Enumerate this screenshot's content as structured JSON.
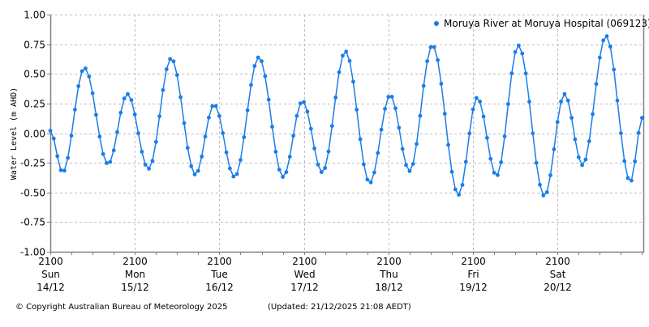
{
  "footer": {
    "copyright": "© Copyright Australian Bureau of Meteorology 2025",
    "updated": "(Updated: 21/12/2025 21:08 AEDT)"
  },
  "colors": {
    "series": "#1a7de8",
    "grid": "#bdbdbd",
    "axis": "#808080"
  },
  "chart_data": {
    "type": "line",
    "title": "",
    "xlabel": "",
    "ylabel": "Water Level (m AHD)",
    "ylim": [
      -1.0,
      1.0
    ],
    "yticks": [
      "1.00",
      "0.75",
      "0.50",
      "0.25",
      "0.00",
      "-0.25",
      "-0.50",
      "-0.75",
      "-1.00"
    ],
    "ytick_values": [
      1.0,
      0.75,
      0.5,
      0.25,
      0.0,
      -0.25,
      -0.5,
      -0.75,
      -1.0
    ],
    "xlim_hours": [
      0,
      168.5
    ],
    "x_unit": "hours since 2100 Sun 14/12",
    "xticks": [
      {
        "hour": 0,
        "time": "2100",
        "day": "Sun",
        "date": "14/12"
      },
      {
        "hour": 24,
        "time": "2100",
        "day": "Mon",
        "date": "15/12"
      },
      {
        "hour": 48,
        "time": "2100",
        "day": "Tue",
        "date": "16/12"
      },
      {
        "hour": 72,
        "time": "2100",
        "day": "Wed",
        "date": "17/12"
      },
      {
        "hour": 96,
        "time": "2100",
        "day": "Thu",
        "date": "18/12"
      },
      {
        "hour": 120,
        "time": "2100",
        "day": "Fri",
        "date": "19/12"
      },
      {
        "hour": 144,
        "time": "2100",
        "day": "Sat",
        "date": "20/12"
      }
    ],
    "minor_tick_hours": 6,
    "grid": true,
    "legend_position": "top-right",
    "series": [
      {
        "name": "Moruya River at Moruya Hospital (069123)",
        "marker": "dot",
        "sampling": "hourly",
        "extrema": {
          "x": [
            0.0,
            3.5,
            9.7,
            16.4,
            21.9,
            27.9,
            34.3,
            41.2,
            46.5,
            52.3,
            59.2,
            66.1,
            71.6,
            77.2,
            83.8,
            90.7,
            96.5,
            102.0,
            108.5,
            115.9,
            121.2,
            126.7,
            132.9,
            140.3,
            146.0,
            151.1,
            157.8,
            164.7,
            168.1
          ],
          "y": [
            0.02,
            -0.33,
            0.55,
            -0.26,
            0.33,
            -0.3,
            0.63,
            -0.35,
            0.24,
            -0.37,
            0.64,
            -0.37,
            0.27,
            -0.33,
            0.69,
            -0.42,
            0.32,
            -0.32,
            0.74,
            -0.52,
            0.3,
            -0.36,
            0.74,
            -0.53,
            0.33,
            -0.27,
            0.82,
            -0.41,
            0.13
          ]
        }
      }
    ]
  }
}
